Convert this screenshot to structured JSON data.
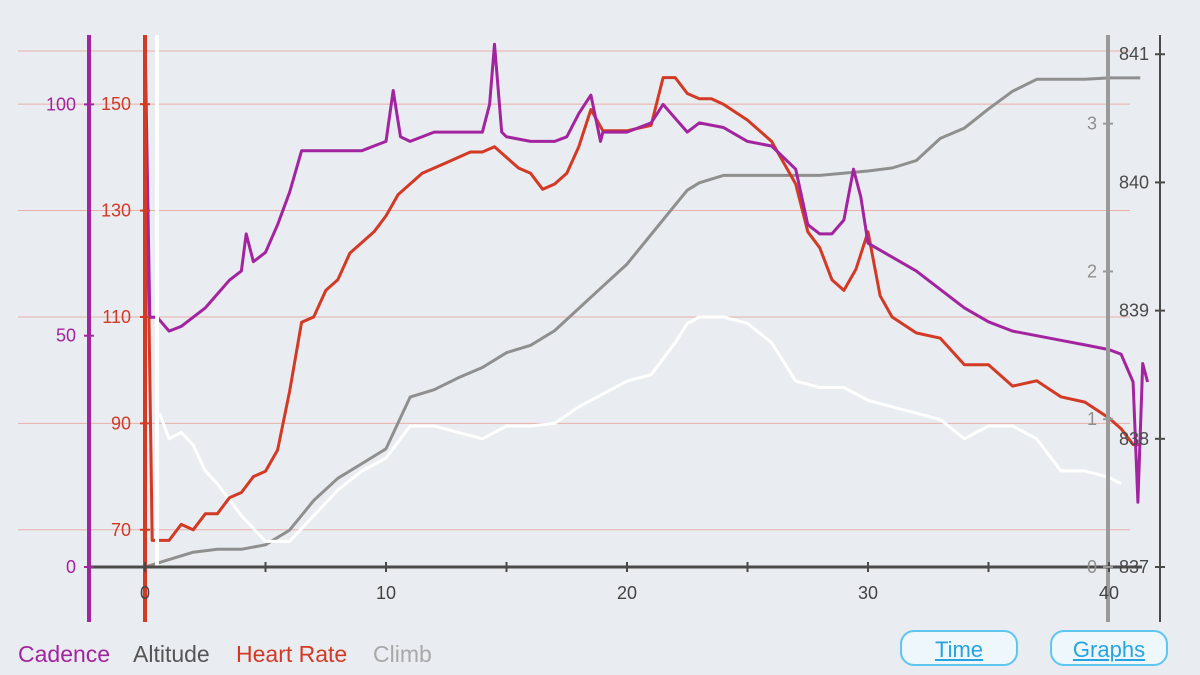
{
  "chart_data": {
    "type": "line",
    "title": "",
    "x": {
      "label": "",
      "min": 0,
      "max": 42,
      "ticks": [
        0,
        10,
        20,
        30,
        40
      ],
      "minor_ticks": [
        5,
        15,
        25,
        35
      ]
    },
    "axes": {
      "cadence": {
        "min": 0,
        "max": 115,
        "ticks": [
          0,
          50,
          100
        ],
        "color": "#a3249f"
      },
      "heart_rate": {
        "min": 63,
        "max": 163,
        "ticks": [
          70,
          90,
          110,
          130,
          150
        ],
        "color": "#d23a25"
      },
      "climb": {
        "min": 0,
        "max": 3.6,
        "ticks": [
          0,
          1,
          2,
          3
        ],
        "color": "#8f8f8f"
      },
      "altitude": {
        "min": 837,
        "max": 841.15,
        "ticks": [
          837,
          838,
          839,
          840,
          841
        ],
        "color": "#4a4a4a"
      }
    },
    "grid": "horizontal",
    "series": [
      {
        "name": "Climb",
        "axis": "climb",
        "color": "#8f8f8f",
        "points": [
          [
            0,
            0
          ],
          [
            1,
            0.05
          ],
          [
            2,
            0.1
          ],
          [
            3,
            0.12
          ],
          [
            4,
            0.12
          ],
          [
            5,
            0.15
          ],
          [
            6,
            0.25
          ],
          [
            7,
            0.45
          ],
          [
            8,
            0.6
          ],
          [
            9,
            0.7
          ],
          [
            10,
            0.8
          ],
          [
            11,
            1.15
          ],
          [
            12,
            1.2
          ],
          [
            13,
            1.28
          ],
          [
            14,
            1.35
          ],
          [
            15,
            1.45
          ],
          [
            16,
            1.5
          ],
          [
            17,
            1.6
          ],
          [
            18,
            1.75
          ],
          [
            19,
            1.9
          ],
          [
            20,
            2.05
          ],
          [
            21,
            2.25
          ],
          [
            22,
            2.45
          ],
          [
            22.5,
            2.55
          ],
          [
            23,
            2.6
          ],
          [
            24,
            2.65
          ],
          [
            26,
            2.65
          ],
          [
            28,
            2.65
          ],
          [
            30,
            2.68
          ],
          [
            31,
            2.7
          ],
          [
            32,
            2.75
          ],
          [
            33,
            2.9
          ],
          [
            34,
            2.97
          ],
          [
            35,
            3.1
          ],
          [
            36,
            3.22
          ],
          [
            37,
            3.3
          ],
          [
            38,
            3.3
          ],
          [
            39,
            3.3
          ],
          [
            40,
            3.31
          ],
          [
            41.3,
            3.31
          ]
        ]
      },
      {
        "name": "Altitude",
        "axis": "altitude",
        "color": "#ffffff",
        "points": [
          [
            0.6,
            838.2
          ],
          [
            1,
            838.0
          ],
          [
            1.5,
            838.05
          ],
          [
            2,
            837.95
          ],
          [
            2.5,
            837.75
          ],
          [
            3,
            837.65
          ],
          [
            4,
            837.4
          ],
          [
            5,
            837.2
          ],
          [
            6,
            837.2
          ],
          [
            7,
            837.4
          ],
          [
            8,
            837.6
          ],
          [
            9,
            837.75
          ],
          [
            10,
            837.85
          ],
          [
            11,
            838.1
          ],
          [
            12,
            838.1
          ],
          [
            13,
            838.05
          ],
          [
            14,
            838.0
          ],
          [
            15,
            838.1
          ],
          [
            16,
            838.1
          ],
          [
            17,
            838.12
          ],
          [
            18,
            838.25
          ],
          [
            19,
            838.35
          ],
          [
            20,
            838.45
          ],
          [
            21,
            838.5
          ],
          [
            22,
            838.75
          ],
          [
            22.5,
            838.9
          ],
          [
            23,
            838.95
          ],
          [
            24,
            838.95
          ],
          [
            25,
            838.9
          ],
          [
            26,
            838.75
          ],
          [
            27,
            838.45
          ],
          [
            28,
            838.4
          ],
          [
            29,
            838.4
          ],
          [
            30,
            838.3
          ],
          [
            31,
            838.25
          ],
          [
            32,
            838.2
          ],
          [
            33,
            838.15
          ],
          [
            34,
            838.0
          ],
          [
            35,
            838.1
          ],
          [
            36,
            838.1
          ],
          [
            37,
            838.0
          ],
          [
            38,
            837.75
          ],
          [
            39,
            837.75
          ],
          [
            40,
            837.7
          ],
          [
            40.5,
            837.65
          ]
        ]
      },
      {
        "name": "Heart Rate",
        "axis": "heart_rate",
        "color": "#d23a25",
        "points": [
          [
            0,
            161
          ],
          [
            0.3,
            68
          ],
          [
            1,
            68
          ],
          [
            1.5,
            71
          ],
          [
            2,
            70
          ],
          [
            2.5,
            73
          ],
          [
            3,
            73
          ],
          [
            3.5,
            76
          ],
          [
            4,
            77
          ],
          [
            4.5,
            80
          ],
          [
            5,
            81
          ],
          [
            5.5,
            85
          ],
          [
            6,
            96
          ],
          [
            6.5,
            109
          ],
          [
            7,
            110
          ],
          [
            7.5,
            115
          ],
          [
            8,
            117
          ],
          [
            8.5,
            122
          ],
          [
            9,
            124
          ],
          [
            9.5,
            126
          ],
          [
            10,
            129
          ],
          [
            10.5,
            133
          ],
          [
            11,
            135
          ],
          [
            11.5,
            137
          ],
          [
            12,
            138
          ],
          [
            12.5,
            139
          ],
          [
            13,
            140
          ],
          [
            13.5,
            141
          ],
          [
            14,
            141
          ],
          [
            14.5,
            142
          ],
          [
            15,
            140
          ],
          [
            15.5,
            138
          ],
          [
            16,
            137
          ],
          [
            16.5,
            134
          ],
          [
            17,
            135
          ],
          [
            17.5,
            137
          ],
          [
            18,
            142
          ],
          [
            18.5,
            149
          ],
          [
            19,
            145
          ],
          [
            20,
            145
          ],
          [
            21,
            146
          ],
          [
            21.5,
            155
          ],
          [
            22,
            155
          ],
          [
            22.5,
            152
          ],
          [
            23,
            151
          ],
          [
            23.5,
            151
          ],
          [
            24,
            150
          ],
          [
            25,
            147
          ],
          [
            26,
            143
          ],
          [
            27,
            135
          ],
          [
            27.5,
            126
          ],
          [
            28,
            123
          ],
          [
            28.5,
            117
          ],
          [
            29,
            115
          ],
          [
            29.5,
            119
          ],
          [
            30,
            126
          ],
          [
            30.5,
            114
          ],
          [
            31,
            110
          ],
          [
            32,
            107
          ],
          [
            33,
            106
          ],
          [
            34,
            101
          ],
          [
            35,
            101
          ],
          [
            36,
            97
          ],
          [
            37,
            98
          ],
          [
            38,
            95
          ],
          [
            39,
            94
          ],
          [
            40,
            91
          ],
          [
            40.5,
            89
          ],
          [
            41,
            86
          ],
          [
            41.3,
            86
          ]
        ]
      },
      {
        "name": "Cadence",
        "axis": "cadence",
        "color": "#a3249f",
        "points": [
          [
            0,
            115
          ],
          [
            0.2,
            54
          ],
          [
            0.5,
            54
          ],
          [
            1,
            51
          ],
          [
            1.5,
            52
          ],
          [
            2,
            54
          ],
          [
            2.5,
            56
          ],
          [
            3,
            59
          ],
          [
            3.5,
            62
          ],
          [
            4,
            64
          ],
          [
            4.2,
            72
          ],
          [
            4.5,
            66
          ],
          [
            5,
            68
          ],
          [
            5.5,
            74
          ],
          [
            6,
            81
          ],
          [
            6.5,
            90
          ],
          [
            7,
            90
          ],
          [
            8,
            90
          ],
          [
            9,
            90
          ],
          [
            9.5,
            91
          ],
          [
            10,
            92
          ],
          [
            10.3,
            103
          ],
          [
            10.6,
            93
          ],
          [
            11,
            92
          ],
          [
            12,
            94
          ],
          [
            13,
            94
          ],
          [
            14,
            94
          ],
          [
            14.3,
            100
          ],
          [
            14.5,
            113
          ],
          [
            14.8,
            94
          ],
          [
            15,
            93
          ],
          [
            16,
            92
          ],
          [
            17,
            92
          ],
          [
            17.5,
            93
          ],
          [
            18,
            98
          ],
          [
            18.5,
            102
          ],
          [
            18.9,
            92
          ],
          [
            19,
            94
          ],
          [
            20,
            94
          ],
          [
            21,
            96
          ],
          [
            21.5,
            100
          ],
          [
            22,
            97
          ],
          [
            22.5,
            94
          ],
          [
            23,
            96
          ],
          [
            24,
            95
          ],
          [
            25,
            92
          ],
          [
            26,
            91
          ],
          [
            27,
            86
          ],
          [
            27.5,
            74
          ],
          [
            28,
            72
          ],
          [
            28.5,
            72
          ],
          [
            29,
            75
          ],
          [
            29.4,
            86
          ],
          [
            29.7,
            80
          ],
          [
            30,
            70
          ],
          [
            31,
            67
          ],
          [
            32,
            64
          ],
          [
            33,
            60
          ],
          [
            34,
            56
          ],
          [
            35,
            53
          ],
          [
            36,
            51
          ],
          [
            37,
            50
          ],
          [
            38,
            49
          ],
          [
            39,
            48
          ],
          [
            40,
            47
          ],
          [
            40.5,
            46
          ],
          [
            41,
            40
          ],
          [
            41.2,
            14
          ],
          [
            41.4,
            44
          ],
          [
            41.6,
            40
          ]
        ]
      }
    ]
  },
  "legend": [
    {
      "label": "Cadence",
      "color": "#a3249f"
    },
    {
      "label": "Altitude",
      "color": "#555555"
    },
    {
      "label": "Heart Rate",
      "color": "#d23a25"
    },
    {
      "label": "Climb",
      "color": "#a8a8a8"
    }
  ],
  "buttons": {
    "time_label": "Time",
    "graphs_label": "Graphs"
  }
}
